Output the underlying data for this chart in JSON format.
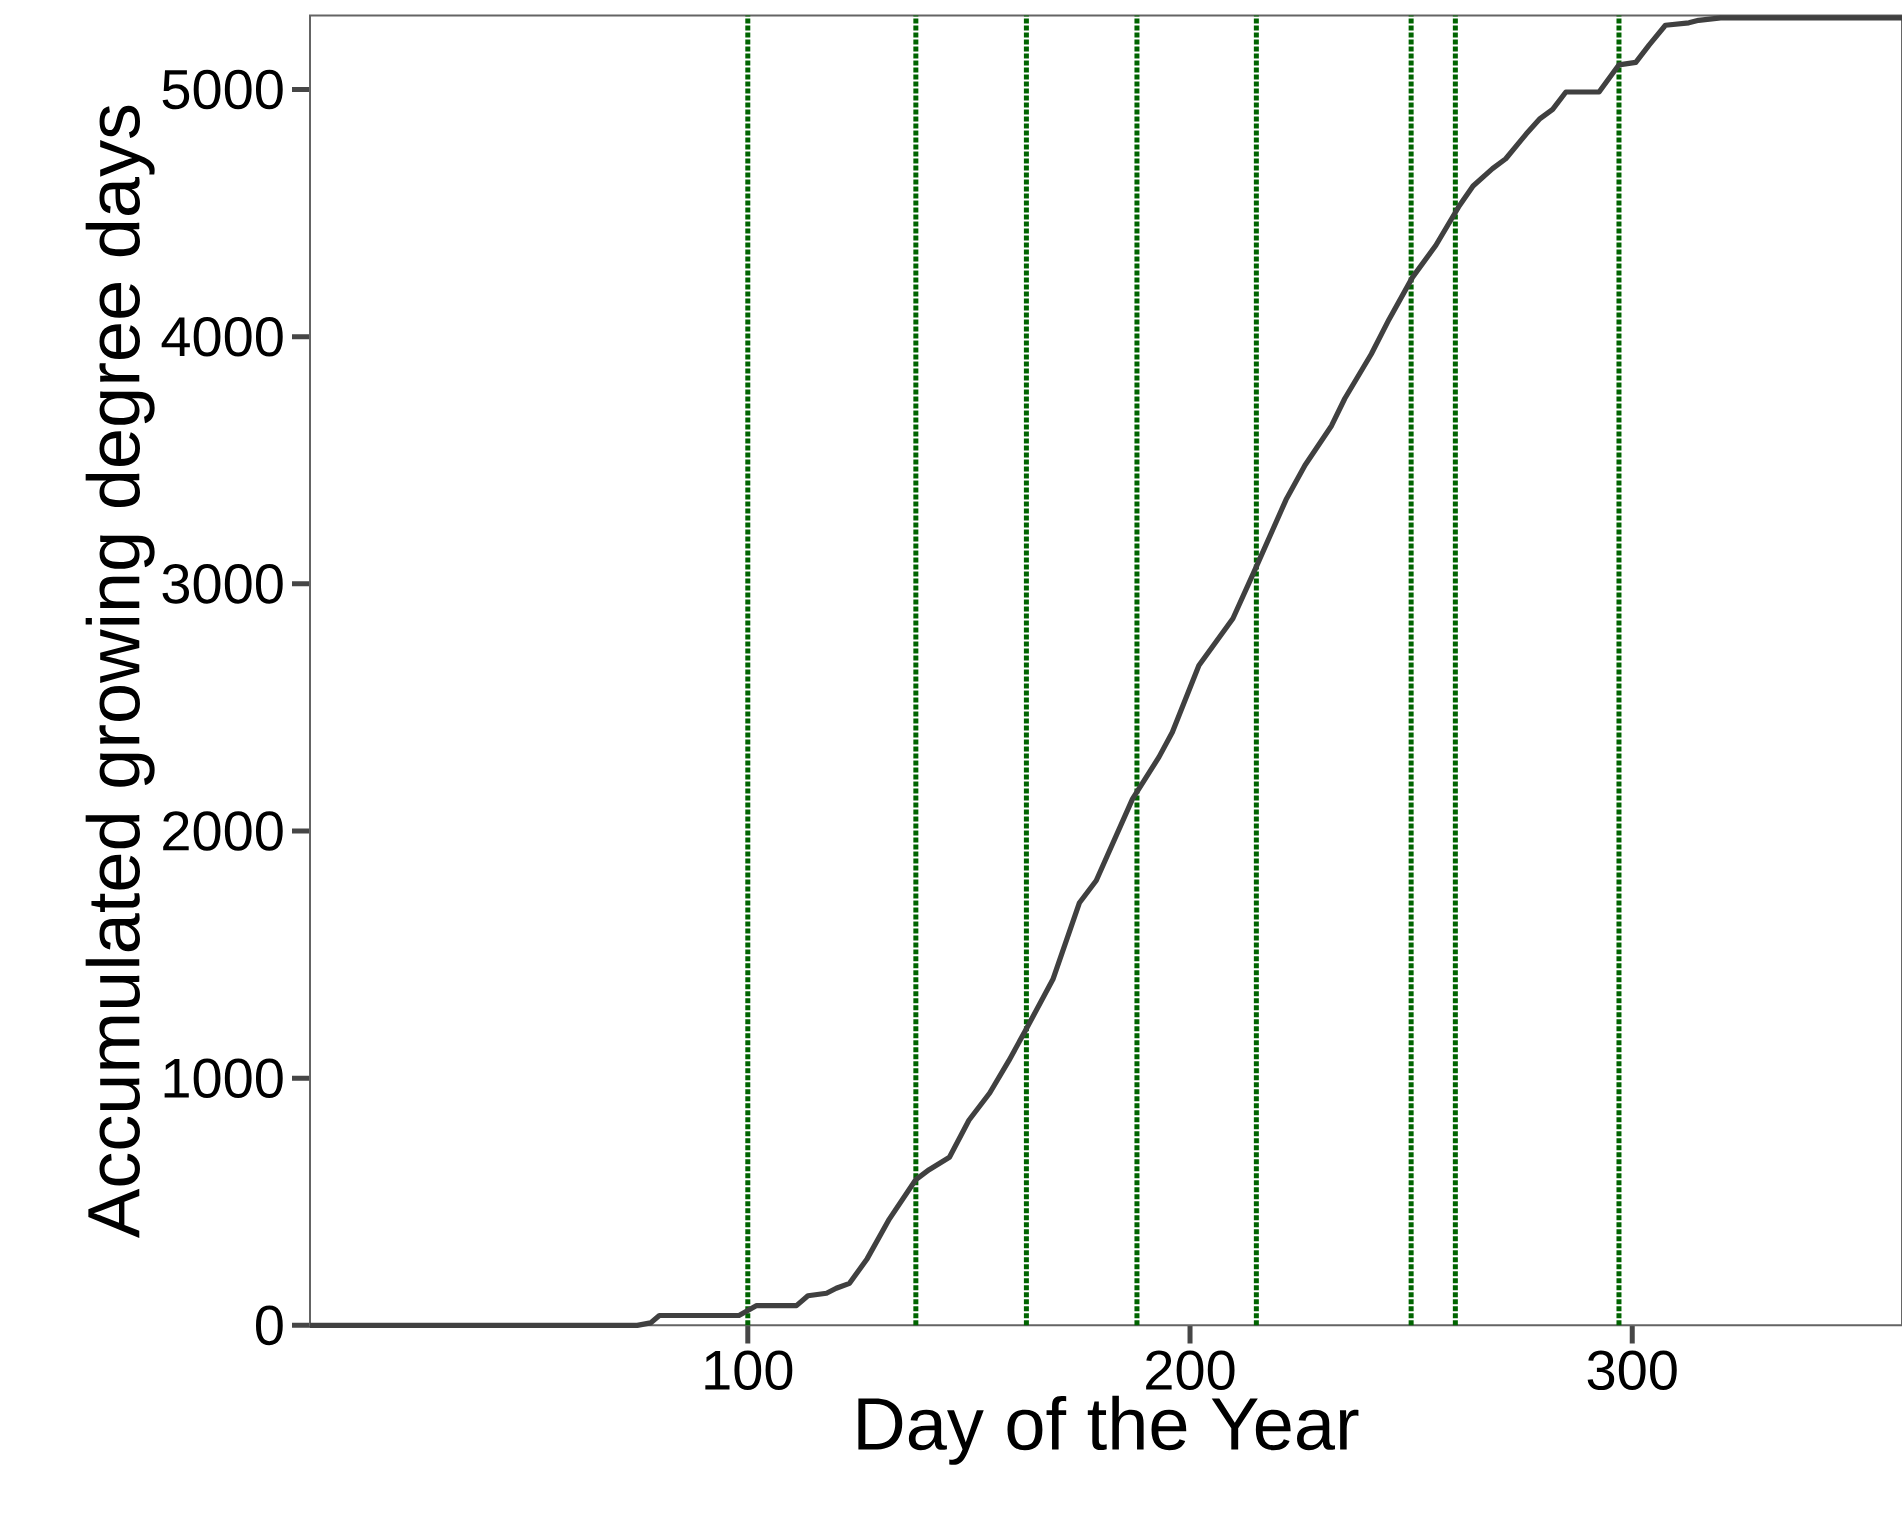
{
  "chart_data": {
    "type": "line",
    "xlabel": "Day of the Year",
    "ylabel": "Accumulated growing degree days",
    "xlim": [
      1,
      361
    ],
    "ylim": [
      0,
      5300
    ],
    "xticks": [
      100,
      200,
      300
    ],
    "yticks": [
      0,
      1000,
      2000,
      3000,
      4000,
      5000
    ],
    "series": [
      {
        "color": "#404040",
        "line_style": "solid",
        "x": [
          1,
          75,
          78,
          80,
          98,
          102,
          111,
          113.6,
          117.8,
          120,
          123,
          127,
          132,
          138,
          141,
          145.6,
          150,
          154.7,
          159,
          163,
          169,
          175,
          178.8,
          187,
          193,
          196,
          202,
          209.7,
          215,
          221.7,
          226,
          232,
          235,
          241,
          245,
          250.3,
          255.6,
          260.9,
          264,
          268.4,
          271.4,
          276,
          279,
          282,
          285,
          292.5,
          297,
          300.8,
          303.8,
          307.5,
          312.8,
          315,
          320,
          361
        ],
        "values": [
          0,
          0,
          10,
          40,
          40,
          80,
          80,
          120,
          130,
          150,
          170,
          270,
          430,
          590,
          630,
          680,
          830,
          940,
          1070,
          1200,
          1400,
          1710,
          1800,
          2130,
          2300,
          2400,
          2670,
          2860,
          3070,
          3340,
          3480,
          3640,
          3750,
          3930,
          4070,
          4240,
          4370,
          4530,
          4610,
          4680,
          4720,
          4820,
          4880,
          4920,
          4990,
          4990,
          5100,
          5110,
          5180,
          5260,
          5270,
          5280,
          5290,
          5290
        ]
      }
    ],
    "ref_lines": [
      {
        "axis": "x",
        "value": 100,
        "color": "#006400",
        "line_style": "dotted"
      },
      {
        "axis": "x",
        "value": 138,
        "color": "#006400",
        "line_style": "dotted"
      },
      {
        "axis": "x",
        "value": 163,
        "color": "#006400",
        "line_style": "dotted"
      },
      {
        "axis": "x",
        "value": 188,
        "color": "#006400",
        "line_style": "dotted"
      },
      {
        "axis": "x",
        "value": 215,
        "color": "#006400",
        "line_style": "dotted"
      },
      {
        "axis": "x",
        "value": 250,
        "color": "#006400",
        "line_style": "dotted"
      },
      {
        "axis": "x",
        "value": 260,
        "color": "#006400",
        "line_style": "dotted"
      },
      {
        "axis": "x",
        "value": 297,
        "color": "#006400",
        "line_style": "dotted"
      }
    ],
    "grid": false
  }
}
